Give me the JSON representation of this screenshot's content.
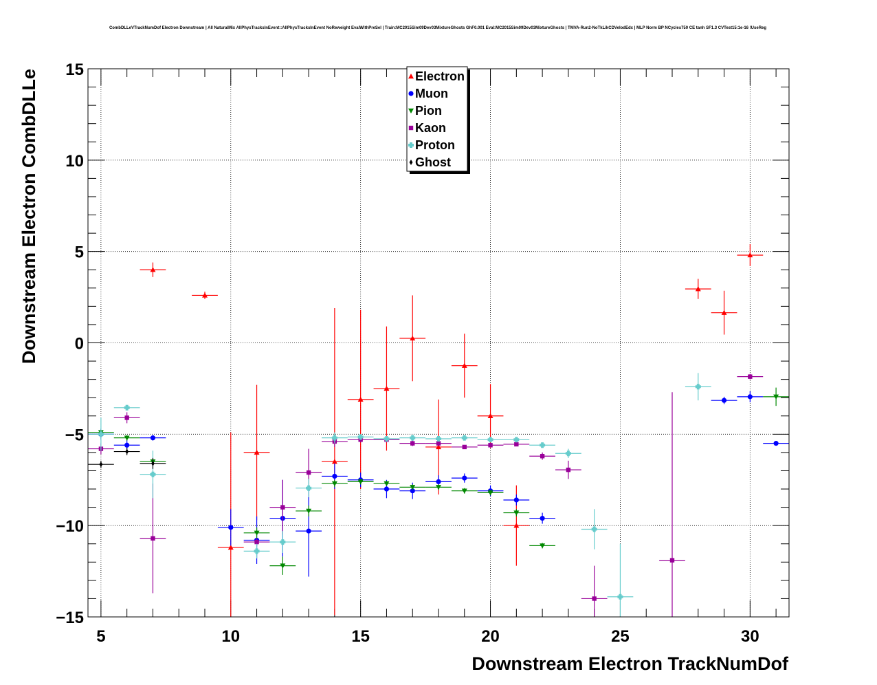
{
  "chart_data": {
    "type": "scatter",
    "title": "CombDLLeVTrackNumDof Electron Downstream | All NaturalMix AllPhysTracksInEvent::AllPhysTracksInEvent NoReweight EvalWithPreSel | Train:MC2015Sim09Dev03MixtureGhosts GhF0.001 Eval:MC2015Sim09Dev03MixtureGhosts | TMVA-Run2-NoTkLikCDVelodEdx | MLP Norm BP NCycles750 CE tanh SF1.3 CVTest15:1e-16 !UseReg",
    "xlabel": "Downstream Electron TrackNumDof",
    "ylabel": "Downstream Electron CombDLLe",
    "xlim": [
      4.5,
      31.5
    ],
    "ylim": [
      -15,
      15
    ],
    "xticks": [
      5,
      10,
      15,
      20,
      25,
      30
    ],
    "yticks": [
      -15,
      -10,
      -5,
      0,
      5,
      10,
      15
    ],
    "xtick_labels": [
      "5",
      "10",
      "15",
      "20",
      "25",
      "30"
    ],
    "ytick_labels": [
      "−15",
      "−10",
      "−5",
      "0",
      "5",
      "10",
      "15"
    ],
    "grid": true,
    "legend_position": "top-center",
    "series": [
      {
        "name": "Electron",
        "color": "#ff0000",
        "marker": "triangle-up",
        "points": [
          [
            7,
            4.0,
            0.4
          ],
          [
            9,
            2.6,
            0.2
          ],
          [
            10,
            -11.2,
            6.3
          ],
          [
            11,
            -6.0,
            3.7
          ],
          [
            14,
            -6.5,
            8.4
          ],
          [
            15,
            -3.1,
            4.9
          ],
          [
            16,
            -2.5,
            3.4
          ],
          [
            17,
            0.25,
            2.35
          ],
          [
            18,
            -5.7,
            2.6
          ],
          [
            19,
            -1.25,
            1.75
          ],
          [
            20,
            -4.0,
            1.75
          ],
          [
            21,
            -10.0,
            2.2
          ],
          [
            28,
            2.95,
            0.55
          ],
          [
            29,
            1.65,
            1.2
          ],
          [
            30,
            4.8,
            0.6
          ]
        ]
      },
      {
        "name": "Muon",
        "color": "#0000ff",
        "marker": "circle",
        "points": [
          [
            5,
            -5.0,
            0.3
          ],
          [
            6,
            -5.6,
            0.3
          ],
          [
            7,
            -5.2,
            0.15
          ],
          [
            10,
            -10.1,
            1.0
          ],
          [
            11,
            -10.8,
            1.3
          ],
          [
            12,
            -9.6,
            2.1
          ],
          [
            13,
            -10.3,
            2.5
          ],
          [
            14,
            -7.3,
            0.7
          ],
          [
            15,
            -7.5,
            0.4
          ],
          [
            16,
            -8.0,
            0.5
          ],
          [
            17,
            -8.1,
            0.45
          ],
          [
            18,
            -7.6,
            0.35
          ],
          [
            19,
            -7.4,
            0.25
          ],
          [
            20,
            -8.1,
            0.3
          ],
          [
            21,
            -8.6,
            0.3
          ],
          [
            22,
            -9.6,
            0.3
          ],
          [
            29,
            -3.15,
            0.2
          ],
          [
            30,
            -2.95,
            0.3
          ],
          [
            31,
            -5.5,
            0.1
          ]
        ]
      },
      {
        "name": "Pion",
        "color": "#008800",
        "marker": "triangle-down",
        "points": [
          [
            5,
            -4.9,
            0.15
          ],
          [
            6,
            -5.2,
            0.15
          ],
          [
            7,
            -6.5,
            0.15
          ],
          [
            11,
            -10.4,
            0.3
          ],
          [
            12,
            -12.2,
            0.5
          ],
          [
            13,
            -9.2,
            0.3
          ],
          [
            14,
            -7.7,
            0.2
          ],
          [
            15,
            -7.6,
            0.15
          ],
          [
            16,
            -7.7,
            0.15
          ],
          [
            17,
            -7.9,
            0.15
          ],
          [
            18,
            -7.9,
            0.15
          ],
          [
            19,
            -8.1,
            0.15
          ],
          [
            20,
            -8.2,
            0.15
          ],
          [
            21,
            -9.3,
            0.2
          ],
          [
            22,
            -11.1,
            0.15
          ],
          [
            31,
            -2.95,
            0.5
          ]
        ]
      },
      {
        "name": "Kaon",
        "color": "#990099",
        "marker": "square",
        "points": [
          [
            5,
            -5.8,
            0.3
          ],
          [
            6,
            -4.1,
            0.3
          ],
          [
            7,
            -10.7,
            3.0
          ],
          [
            11,
            -10.9,
            0.2
          ],
          [
            12,
            -9.0,
            1.5
          ],
          [
            13,
            -7.1,
            1.3
          ],
          [
            14,
            -5.4,
            0.3
          ],
          [
            15,
            -5.3,
            0.15
          ],
          [
            16,
            -5.3,
            0.15
          ],
          [
            17,
            -5.5,
            0.15
          ],
          [
            18,
            -5.5,
            0.15
          ],
          [
            19,
            -5.7,
            0.1
          ],
          [
            20,
            -5.6,
            0.1
          ],
          [
            21,
            -5.55,
            0.1
          ],
          [
            22,
            -6.2,
            0.2
          ],
          [
            23,
            -6.95,
            0.5
          ],
          [
            24,
            -14.0,
            1.8
          ],
          [
            27,
            -11.9,
            9.2
          ],
          [
            30,
            -1.85,
            0.15
          ]
        ]
      },
      {
        "name": "Proton",
        "color": "#66cccc",
        "marker": "cross",
        "points": [
          [
            5,
            -5.0,
            0.9
          ],
          [
            6,
            -3.55,
            0.15
          ],
          [
            7,
            -7.2,
            1.3
          ],
          [
            11,
            -11.4,
            0.4
          ],
          [
            12,
            -10.9,
            0.6
          ],
          [
            13,
            -7.95,
            0.5
          ],
          [
            14,
            -5.2,
            0.3
          ],
          [
            15,
            -5.15,
            0.15
          ],
          [
            16,
            -5.25,
            0.1
          ],
          [
            17,
            -5.2,
            0.1
          ],
          [
            18,
            -5.25,
            0.1
          ],
          [
            19,
            -5.2,
            0.1
          ],
          [
            20,
            -5.3,
            0.1
          ],
          [
            21,
            -5.3,
            0.1
          ],
          [
            22,
            -5.6,
            0.15
          ],
          [
            23,
            -6.05,
            0.25
          ],
          [
            24,
            -10.2,
            1.1
          ],
          [
            25,
            -13.9,
            2.9
          ],
          [
            28,
            -2.4,
            0.75
          ]
        ]
      },
      {
        "name": "Ghost",
        "color": "#000000",
        "marker": "diamond",
        "points": [
          [
            5,
            -6.65,
            0.2
          ],
          [
            6,
            -5.95,
            0.2
          ],
          [
            7,
            -6.6,
            0.3
          ]
        ]
      }
    ]
  }
}
